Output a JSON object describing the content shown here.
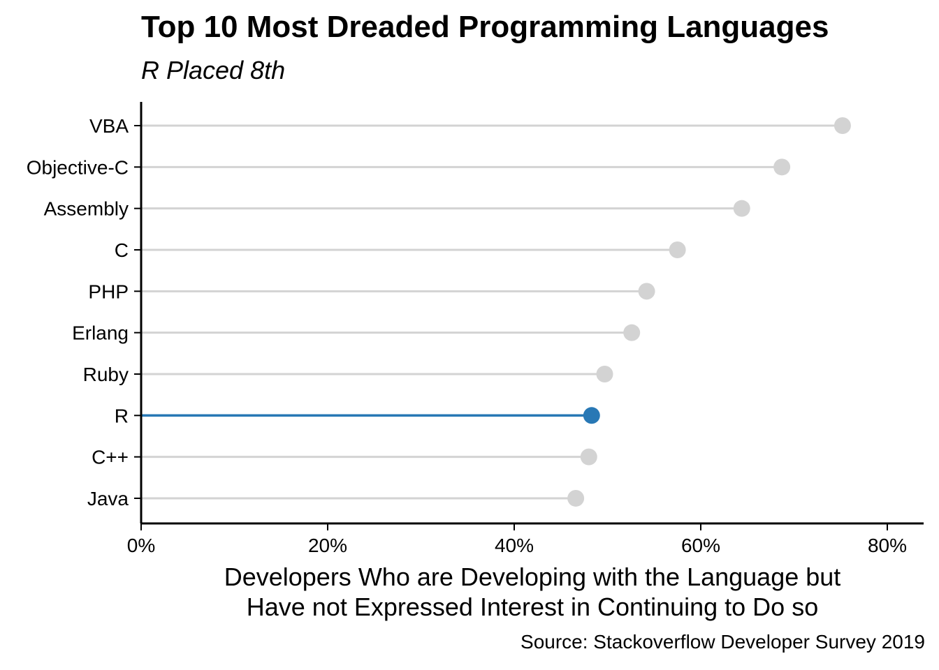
{
  "chart_data": {
    "type": "lollipop",
    "title": "Top 10 Most Dreaded Programming Languages",
    "subtitle": "R Placed 8th",
    "xlabel": [
      "Developers Who are Developing with the Language but",
      "Have not Expressed Interest in Continuing to Do so"
    ],
    "ylabel": "",
    "caption": "Source: Stackoverflow Developer Survey 2019",
    "categories": [
      "VBA",
      "Objective-C",
      "Assembly",
      "C",
      "PHP",
      "Erlang",
      "Ruby",
      "R",
      "C++",
      "Java"
    ],
    "values": [
      75.2,
      68.7,
      64.4,
      57.5,
      54.2,
      52.6,
      49.7,
      48.3,
      48.0,
      46.6
    ],
    "highlight": "R",
    "xlim": [
      0,
      84
    ],
    "xticks": [
      0,
      20,
      40,
      60,
      80
    ],
    "xtick_labels": [
      "0%",
      "20%",
      "40%",
      "60%",
      "80%"
    ],
    "grid": false,
    "colors": {
      "default": "#d3d3d3",
      "highlight": "#2878b5",
      "axis": "#000000"
    }
  }
}
